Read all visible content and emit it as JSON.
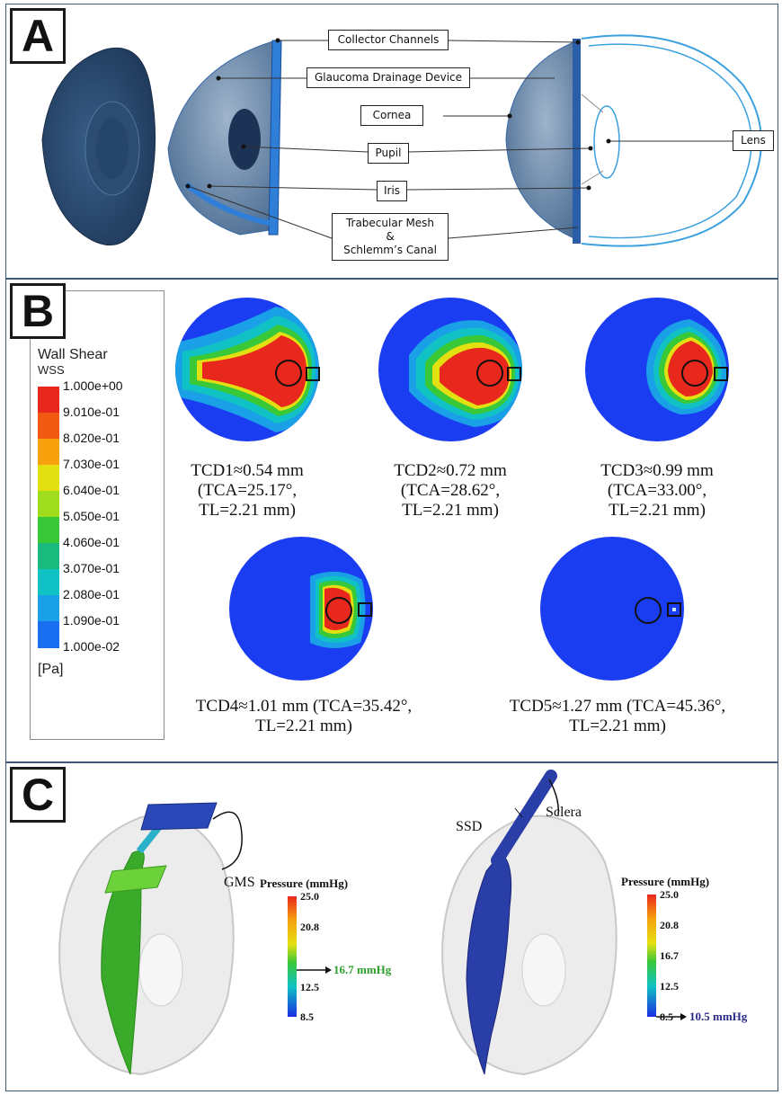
{
  "panels": {
    "a": {
      "letter": "A",
      "labels": {
        "collector": "Collector Channels",
        "gdd": "Glaucoma Drainage Device",
        "cornea": "Cornea",
        "pupil": "Pupil",
        "iris": "Iris",
        "lens": "Lens",
        "trab1": "Trabecular Mesh",
        "trab2": "&",
        "trab3": "Schlemm’s Canal"
      }
    },
    "b": {
      "letter": "B",
      "legend": {
        "title1": "Wall Shear",
        "title2": "WSS",
        "unit": "[Pa]",
        "ticks": [
          "1.000e+00",
          "9.010e-01",
          "8.020e-01",
          "7.030e-01",
          "6.040e-01",
          "5.050e-01",
          "4.060e-01",
          "3.070e-01",
          "2.080e-01",
          "1.090e-01",
          "1.000e-02"
        ],
        "colors": [
          "#e8281c",
          "#f25a14",
          "#f7a20d",
          "#e3e011",
          "#9fdc1c",
          "#39c838",
          "#1ab97e",
          "#10c2c4",
          "#1aa0e6",
          "#1a6ef0",
          "#1b3df2"
        ]
      },
      "cases": [
        {
          "l1": "TCD1≈0.54 mm",
          "l2": "(TCA=25.17°,",
          "l3": "TL=2.21 mm)"
        },
        {
          "l1": "TCD2≈0.72 mm",
          "l2": "(TCA=28.62°,",
          "l3": "TL=2.21 mm)"
        },
        {
          "l1": "TCD3≈0.99 mm",
          "l2": "(TCA=33.00°,",
          "l3": "TL=2.21 mm)"
        },
        {
          "l1": "TCD4≈1.01 mm (TCA=35.42°,",
          "l2": "TL=2.21 mm)"
        },
        {
          "l1": "TCD5≈1.27 mm (TCA=45.36°,",
          "l2": "TL=2.21 mm)"
        }
      ]
    },
    "c": {
      "letter": "C",
      "left": {
        "device_label": "GMS",
        "cb_title": "Pressure (mmHg)",
        "ticks": [
          "25.0",
          "20.8",
          "",
          "12.5",
          "8.5"
        ],
        "marker": "16.7 mmHg",
        "marker_color": "#2aa02a"
      },
      "right": {
        "device_label": "SSD",
        "sclera_label": "Sclera",
        "cb_title": "Pressure (mmHg)",
        "ticks": [
          "25.0",
          "20.8",
          "16.7",
          "12.5",
          "8.5"
        ],
        "marker": "10.5 mmHg",
        "marker_color": "#2a2a8a"
      }
    }
  }
}
